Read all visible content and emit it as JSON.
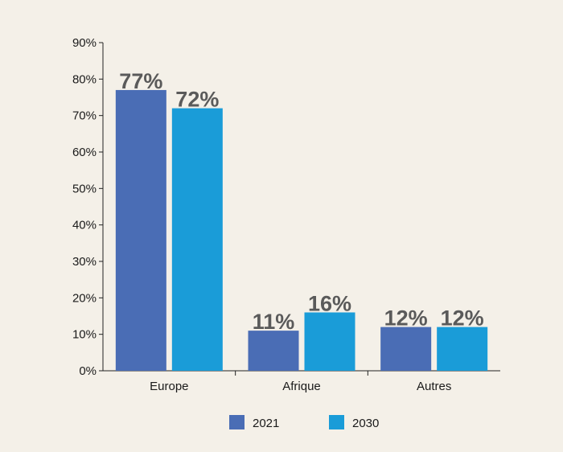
{
  "chart_data": {
    "type": "bar",
    "categories": [
      "Europe",
      "Afrique",
      "Autres"
    ],
    "series": [
      {
        "name": "2021",
        "values": [
          77,
          11,
          12
        ],
        "labels": [
          "77%",
          "11%",
          "12%"
        ],
        "color": "#4a6db5"
      },
      {
        "name": "2030",
        "values": [
          72,
          16,
          12
        ],
        "labels": [
          "72%",
          "16%",
          "12%"
        ],
        "color": "#1a9cd8"
      }
    ],
    "ylim": [
      0,
      90
    ],
    "yticks": [
      0,
      10,
      20,
      30,
      40,
      50,
      60,
      70,
      80,
      90
    ],
    "ytick_labels": [
      "0%",
      "10%",
      "20%",
      "30%",
      "40%",
      "50%",
      "60%",
      "70%",
      "80%",
      "90%"
    ],
    "grid": false,
    "legend_position": "bottom"
  }
}
